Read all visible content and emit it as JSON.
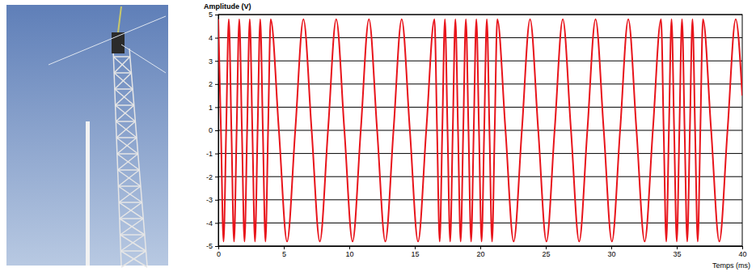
{
  "chart_data": {
    "type": "line",
    "y_label": "Amplitude (V)",
    "x_label": "Temps (ms)",
    "color": "#e8141b",
    "grid": true,
    "xlim": [
      0,
      40
    ],
    "ylim": [
      -5,
      5
    ],
    "xticks": [
      0,
      5,
      10,
      15,
      20,
      25,
      30,
      35,
      40
    ],
    "yticks": [
      -5,
      -4,
      -3,
      -2,
      -1,
      0,
      1,
      2,
      3,
      4,
      5
    ],
    "x": [
      0,
      0.2,
      0.4,
      0.6,
      0.8,
      1.0,
      1.2,
      1.4,
      1.6,
      1.8,
      2.0,
      2.2,
      2.4,
      2.6,
      2.8,
      3.0,
      3.2,
      3.4,
      3.6,
      3.8,
      4.0,
      4.625,
      5.25,
      5.875,
      6.5,
      7.125,
      7.75,
      8.375,
      9.0,
      9.625,
      10.25,
      10.875,
      11.5,
      12.125,
      12.75,
      13.375,
      14.0,
      14.625,
      15.25,
      15.875,
      16.5,
      16.7,
      16.9,
      17.1,
      17.3,
      17.5,
      17.7,
      17.9,
      18.1,
      18.3,
      18.5,
      18.7,
      18.9,
      19.1,
      19.3,
      19.5,
      19.7,
      19.9,
      20.1,
      20.3,
      20.5,
      20.7,
      20.9,
      21.1,
      21.3,
      21.925,
      22.55,
      23.175,
      23.8,
      24.425,
      25.05,
      25.675,
      26.3,
      26.925,
      27.55,
      28.175,
      28.8,
      29.425,
      30.05,
      30.675,
      31.3,
      31.925,
      32.55,
      33.175,
      33.8,
      34.0,
      34.2,
      34.4,
      34.6,
      34.8,
      35.0,
      35.2,
      35.4,
      35.6,
      35.8,
      36.0,
      36.2,
      36.4,
      36.6,
      36.8,
      37.0,
      37.625,
      38.25,
      38.875,
      39.5,
      40.0
    ],
    "values": [
      4.8,
      0,
      -4.8,
      0,
      4.8,
      0,
      -4.8,
      0,
      4.8,
      0,
      -4.8,
      0,
      4.8,
      0,
      -4.8,
      0,
      4.8,
      0,
      -4.8,
      0,
      4.8,
      0,
      -4.8,
      0,
      4.8,
      0,
      -4.8,
      0,
      4.8,
      0,
      -4.8,
      0,
      4.8,
      0,
      -4.8,
      0,
      4.8,
      0,
      -4.8,
      0,
      4.8,
      0,
      -4.8,
      0,
      4.8,
      0,
      -4.8,
      0,
      4.8,
      0,
      -4.8,
      0,
      4.8,
      0,
      -4.8,
      0,
      4.8,
      0,
      -4.8,
      0,
      4.8,
      0,
      -4.8,
      0,
      4.8,
      0,
      -4.8,
      0,
      4.8,
      0,
      -4.8,
      0,
      4.8,
      0,
      -4.8,
      0,
      4.8,
      0,
      -4.8,
      0,
      4.8,
      0,
      -4.8,
      0,
      4.8,
      0,
      -4.8,
      0,
      4.8,
      0,
      -4.8,
      0,
      4.8,
      0,
      -4.8,
      0,
      4.8,
      0,
      -4.8,
      0,
      4.8,
      0,
      -4.8,
      0,
      4.8,
      1.5
    ]
  }
}
